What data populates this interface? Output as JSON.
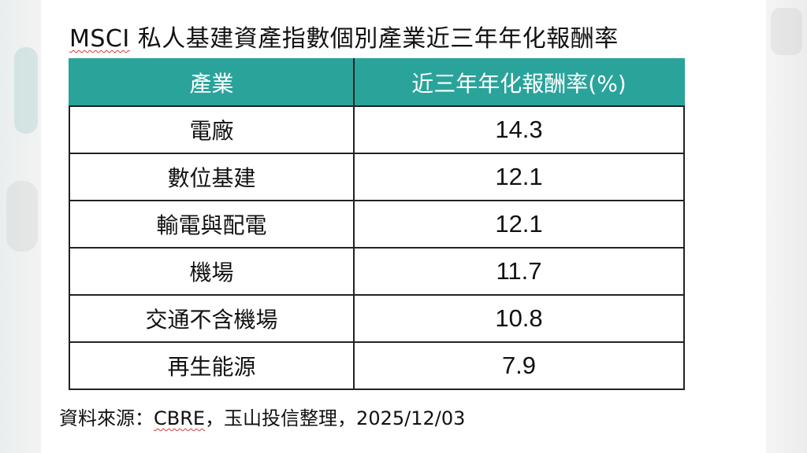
{
  "title": {
    "prefix": "MSCI",
    "text": " 私人基建資產指數個別產業近三年年化報酬率"
  },
  "table": {
    "headers": [
      "產業",
      "近三年年化報酬率(%)"
    ],
    "rows": [
      {
        "industry": "電廠",
        "return": "14.3"
      },
      {
        "industry": "數位基建",
        "return": "12.1"
      },
      {
        "industry": "輸電與配電",
        "return": "12.1"
      },
      {
        "industry": "機場",
        "return": "11.7"
      },
      {
        "industry": "交通不含機場",
        "return": "10.8"
      },
      {
        "industry": "再生能源",
        "return": "7.9"
      }
    ]
  },
  "source": {
    "label": "資料來源：",
    "org": "CBRE",
    "rest": "，玉山投信整理，2025/12/03"
  },
  "colors": {
    "header_bg": "#2aa39b",
    "header_text": "#ffffff",
    "spellcheck_underline": "#d23a3a"
  }
}
